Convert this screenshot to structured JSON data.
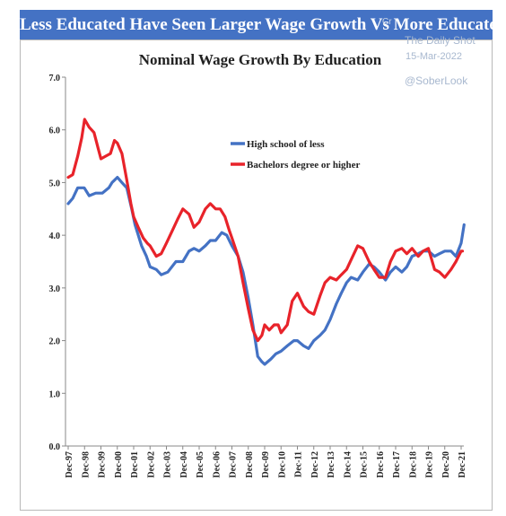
{
  "banner": {
    "title": "Less Educated Have Seen Larger Wage Growth Vs More Educated…."
  },
  "watermark": {
    "site": "The Daily Shot",
    "date": "15-Mar-2022",
    "handle": "@SoberLook",
    "faint": "Cr"
  },
  "colors": {
    "banner": "#4472c4",
    "high_school": "#4472c4",
    "bachelors": "#e8232a"
  },
  "chart_data": {
    "type": "line",
    "title": "Nominal Wage Growth By Education",
    "xlabel": "",
    "ylabel": "",
    "ylim": [
      0,
      7
    ],
    "yticks": [
      "0.0",
      "1.0",
      "2.0",
      "3.0",
      "4.0",
      "5.0",
      "6.0",
      "7.0"
    ],
    "x_tick_labels": [
      "Dec-97",
      "Dec-98",
      "Dec-99",
      "Dec-00",
      "Dec-01",
      "Dec-02",
      "Dec-03",
      "Dec-04",
      "Dec-05",
      "Dec-06",
      "Dec-07",
      "Dec-08",
      "Dec-09",
      "Dec-10",
      "Dec-11",
      "Dec-12",
      "Dec-13",
      "Dec-14",
      "Dec-15",
      "Dec-16",
      "Dec-17",
      "Dec-18",
      "Dec-19",
      "Dec-20",
      "Dec-21"
    ],
    "legend_position": "upper-center",
    "grid": false,
    "series": [
      {
        "name": "High school of less",
        "color": "#4472c4",
        "x": [
          1997.92,
          1998.2,
          1998.5,
          1998.9,
          1999.2,
          1999.6,
          2000.0,
          2000.4,
          2000.6,
          2000.92,
          2001.2,
          2001.5,
          2001.8,
          2002.0,
          2002.4,
          2002.7,
          2002.92,
          2003.3,
          2003.6,
          2004.0,
          2004.5,
          2004.92,
          2005.3,
          2005.6,
          2005.92,
          2006.3,
          2006.6,
          2006.92,
          2007.3,
          2007.6,
          2007.92,
          2008.3,
          2008.6,
          2008.92,
          2009.2,
          2009.5,
          2009.75,
          2009.92,
          2010.3,
          2010.6,
          2010.92,
          2011.3,
          2011.7,
          2011.92,
          2012.3,
          2012.6,
          2012.92,
          2013.3,
          2013.6,
          2013.92,
          2014.3,
          2014.6,
          2014.92,
          2015.2,
          2015.6,
          2015.92,
          2016.3,
          2016.6,
          2016.92,
          2017.3,
          2017.6,
          2017.92,
          2018.3,
          2018.6,
          2018.92,
          2019.3,
          2019.6,
          2019.92,
          2020.3,
          2020.6,
          2020.92,
          2021.3,
          2021.6,
          2021.92,
          2022.1
        ],
        "values": [
          4.6,
          4.7,
          4.9,
          4.9,
          4.75,
          4.8,
          4.8,
          4.9,
          5.0,
          5.1,
          5.0,
          4.9,
          4.5,
          4.2,
          3.8,
          3.6,
          3.4,
          3.35,
          3.25,
          3.3,
          3.5,
          3.5,
          3.7,
          3.75,
          3.7,
          3.8,
          3.9,
          3.9,
          4.05,
          4.0,
          3.8,
          3.6,
          3.3,
          2.8,
          2.3,
          1.7,
          1.6,
          1.55,
          1.65,
          1.75,
          1.8,
          1.9,
          2.0,
          2.0,
          1.9,
          1.85,
          2.0,
          2.1,
          2.2,
          2.4,
          2.7,
          2.9,
          3.1,
          3.2,
          3.15,
          3.3,
          3.45,
          3.4,
          3.3,
          3.15,
          3.3,
          3.4,
          3.3,
          3.4,
          3.6,
          3.65,
          3.7,
          3.7,
          3.6,
          3.65,
          3.7,
          3.7,
          3.6,
          3.85,
          4.2
        ]
      },
      {
        "name": "Bachelors degree or higher",
        "color": "#e8232a",
        "x": [
          1997.92,
          1998.2,
          1998.5,
          1998.75,
          1998.92,
          1999.2,
          1999.5,
          1999.75,
          1999.92,
          2000.2,
          2000.5,
          2000.75,
          2000.92,
          2001.2,
          2001.5,
          2001.75,
          2001.92,
          2002.2,
          2002.5,
          2002.75,
          2002.92,
          2003.3,
          2003.6,
          2003.92,
          2004.3,
          2004.6,
          2004.92,
          2005.3,
          2005.6,
          2005.92,
          2006.3,
          2006.6,
          2006.92,
          2007.2,
          2007.5,
          2007.75,
          2007.92,
          2008.3,
          2008.6,
          2008.92,
          2009.2,
          2009.5,
          2009.75,
          2009.92,
          2010.2,
          2010.5,
          2010.75,
          2010.92,
          2011.3,
          2011.6,
          2011.92,
          2012.3,
          2012.6,
          2012.92,
          2013.3,
          2013.6,
          2013.92,
          2014.3,
          2014.6,
          2014.92,
          2015.3,
          2015.6,
          2015.92,
          2016.3,
          2016.6,
          2016.92,
          2017.3,
          2017.6,
          2017.92,
          2018.3,
          2018.6,
          2018.92,
          2019.3,
          2019.6,
          2019.92,
          2020.3,
          2020.6,
          2020.92,
          2021.3,
          2021.6,
          2021.92,
          2022.0
        ],
        "values": [
          5.1,
          5.15,
          5.5,
          5.85,
          6.2,
          6.05,
          5.95,
          5.65,
          5.45,
          5.5,
          5.55,
          5.8,
          5.75,
          5.55,
          5.05,
          4.6,
          4.35,
          4.15,
          3.95,
          3.85,
          3.8,
          3.6,
          3.65,
          3.85,
          4.1,
          4.3,
          4.5,
          4.4,
          4.15,
          4.25,
          4.5,
          4.6,
          4.5,
          4.5,
          4.35,
          4.1,
          3.95,
          3.6,
          3.1,
          2.6,
          2.2,
          2.0,
          2.1,
          2.3,
          2.2,
          2.3,
          2.3,
          2.15,
          2.3,
          2.75,
          2.9,
          2.65,
          2.55,
          2.5,
          2.85,
          3.1,
          3.2,
          3.15,
          3.25,
          3.35,
          3.6,
          3.8,
          3.75,
          3.5,
          3.35,
          3.2,
          3.2,
          3.5,
          3.7,
          3.75,
          3.65,
          3.75,
          3.6,
          3.7,
          3.75,
          3.35,
          3.3,
          3.2,
          3.35,
          3.5,
          3.7,
          3.7
        ]
      }
    ]
  }
}
